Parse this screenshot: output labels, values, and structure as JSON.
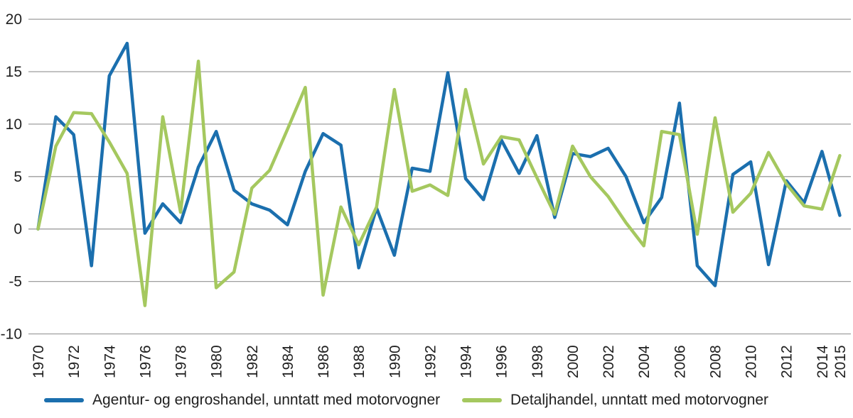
{
  "chart_data": {
    "type": "line",
    "title": "",
    "xlabel": "",
    "ylabel": "",
    "x": [
      1970,
      1971,
      1972,
      1973,
      1974,
      1975,
      1976,
      1977,
      1978,
      1979,
      1980,
      1981,
      1982,
      1983,
      1984,
      1985,
      1986,
      1987,
      1988,
      1989,
      1990,
      1991,
      1992,
      1993,
      1994,
      1995,
      1996,
      1997,
      1998,
      1999,
      2000,
      2001,
      2002,
      2003,
      2004,
      2005,
      2006,
      2007,
      2008,
      2009,
      2010,
      2011,
      2012,
      2013,
      2014,
      2015
    ],
    "series": [
      {
        "name": "Agentur- og engroshandel, unntatt med motorvogner",
        "color": "#1b6fae",
        "values": [
          0,
          10.7,
          9.0,
          -3.5,
          14.6,
          17.7,
          -0.4,
          2.4,
          0.6,
          5.9,
          9.3,
          3.7,
          2.4,
          1.8,
          0.4,
          5.5,
          9.1,
          8.0,
          -3.7,
          2.0,
          -2.5,
          5.8,
          5.5,
          14.9,
          4.8,
          2.8,
          8.5,
          5.3,
          8.9,
          1.1,
          7.2,
          6.9,
          7.7,
          5.0,
          0.6,
          3.0,
          12.0,
          -3.5,
          -5.4,
          5.2,
          6.4,
          -3.4,
          4.6,
          2.5,
          7.4,
          1.3
        ]
      },
      {
        "name": "Detaljhandel, unntatt med motorvogner",
        "color": "#a5c85f",
        "values": [
          0,
          7.9,
          11.1,
          11.0,
          8.3,
          5.3,
          -7.3,
          10.7,
          1.6,
          16.0,
          -5.6,
          -4.1,
          3.9,
          5.6,
          9.5,
          13.5,
          -6.3,
          2.1,
          -1.5,
          2.1,
          13.3,
          3.6,
          4.2,
          3.2,
          13.3,
          6.2,
          8.8,
          8.5,
          4.9,
          1.4,
          7.9,
          5.0,
          3.1,
          0.6,
          -1.6,
          9.3,
          9.0,
          -0.5,
          10.6,
          1.6,
          3.4,
          7.3,
          4.3,
          2.2,
          1.9,
          7.0
        ]
      }
    ],
    "ylim": [
      -10,
      20
    ],
    "yticks": [
      20,
      15,
      10,
      5,
      0,
      -5,
      -10
    ],
    "xticks": [
      1970,
      1972,
      1974,
      1976,
      1978,
      1980,
      1982,
      1984,
      1986,
      1988,
      1990,
      1992,
      1994,
      1996,
      1998,
      2000,
      2002,
      2004,
      2006,
      2008,
      2010,
      2012,
      2014,
      2015
    ],
    "grid": "horizontal",
    "grid_color": "#9e9e9e",
    "tick_label_color": "#1f1f1f",
    "legend_position": "bottom",
    "line_width": 4.5
  }
}
